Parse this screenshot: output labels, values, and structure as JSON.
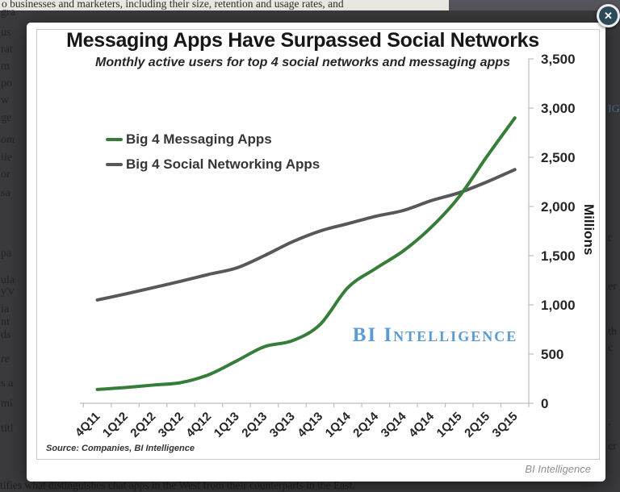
{
  "background": {
    "top_line": "o businesses and marketers, including their size, retention and usage rates, and",
    "bottom_line": "tifies what distinguishes chat apps in the West from their counterparts in the East.",
    "left_fragments": [
      {
        "text": "gra",
        "y": 8
      },
      {
        "text": "us",
        "y": 33
      },
      {
        "text": "rat",
        "y": 54
      },
      {
        "text": "m",
        "y": 75
      },
      {
        "text": "po",
        "y": 96
      },
      {
        "text": "w",
        "y": 117
      },
      {
        "text": "ge",
        "y": 139
      },
      {
        "text": "om",
        "y": 166,
        "italic": true
      },
      {
        "text": "ile",
        "y": 188
      },
      {
        "text": "or",
        "y": 209
      },
      {
        "text": "sa",
        "y": 232
      },
      {
        "text": "pa",
        "y": 307
      },
      {
        "text": "ula",
        "y": 340
      },
      {
        "text": "y'v",
        "y": 354
      },
      {
        "text": "ia",
        "y": 376
      },
      {
        "text": "nt",
        "y": 392
      },
      {
        "text": "ds",
        "y": 408
      },
      {
        "text": "re",
        "y": 438,
        "italic": true
      },
      {
        "text": "s a",
        "y": 468
      },
      {
        "text": "mi",
        "y": 493
      },
      {
        "text": "titl",
        "y": 524
      }
    ],
    "right_fragments": [
      {
        "text": "IG",
        "y": 128,
        "color": "#4f7096"
      },
      {
        "text": "t",
        "y": 288
      },
      {
        "text": "er",
        "y": 348
      },
      {
        "text": "th",
        "y": 404
      },
      {
        "text": "c",
        "y": 424
      },
      {
        "text": ".",
        "y": 516
      },
      {
        "text": "er",
        "y": 546
      }
    ]
  },
  "dialog": {
    "close_label": "✕",
    "footer_brand": "BI Intelligence"
  },
  "colors": {
    "overlay_bg": "#3a393b",
    "close_button_bg": "#2d4a58",
    "watermark_blue": "#5b9bd5",
    "axis_gray": "#bdbdbd"
  },
  "chart_data": {
    "type": "line",
    "title": "Messaging Apps Have Surpassed Social Networks",
    "subtitle": "Monthly active users for top 4 social networks and messaging apps",
    "categories": [
      "4Q11",
      "1Q12",
      "2Q12",
      "3Q12",
      "4Q12",
      "1Q13",
      "2Q13",
      "3Q13",
      "4Q13",
      "1Q14",
      "2Q14",
      "3Q14",
      "4Q14",
      "1Q15",
      "2Q15",
      "3Q15"
    ],
    "series": [
      {
        "name": "Big 4 Messaging Apps",
        "color": "#367d39",
        "values": [
          140,
          160,
          185,
          210,
          290,
          430,
          575,
          635,
          800,
          1175,
          1370,
          1550,
          1790,
          2100,
          2510,
          2900
        ]
      },
      {
        "name": "Big 4 Social Networking Apps",
        "color": "#58585a",
        "values": [
          1050,
          1110,
          1175,
          1240,
          1310,
          1375,
          1500,
          1640,
          1750,
          1825,
          1900,
          1960,
          2060,
          2140,
          2250,
          2375
        ]
      }
    ],
    "xlabel": "",
    "ylabel": "Millions",
    "ylim": [
      0,
      3500
    ],
    "y_ticks": [
      "0",
      "500",
      "1,000",
      "1,500",
      "2,000",
      "2,500",
      "3,000",
      "3,500"
    ],
    "grid": false,
    "legend_position": "inside-top-left",
    "source": "Source: Companies, BI Intelligence",
    "watermark": "BI Intelligence"
  }
}
